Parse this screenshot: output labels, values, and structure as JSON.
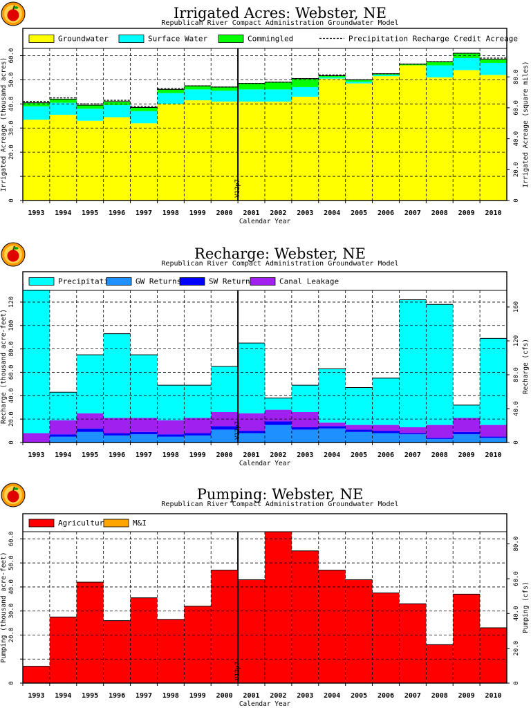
{
  "subtitle": "Republican River Compact Administration Groundwater Model",
  "years": [
    "1993",
    "1994",
    "1995",
    "1996",
    "1997",
    "1998",
    "1999",
    "2000",
    "2001",
    "2002",
    "2003",
    "2004",
    "2005",
    "2006",
    "2007",
    "2008",
    "2009",
    "2010"
  ],
  "marker": {
    "label": "V12p7",
    "after_year": "2000"
  },
  "chart_data": [
    {
      "type": "bar",
      "stacked": true,
      "title": "Irrigated Acres: Webster, NE",
      "xlabel": "Calendar Year",
      "ylabel": "Irrigated Acreage (thousand acres)",
      "ylabel_right": "Irrigated Acreage (square miles)",
      "ylim": [
        0,
        63
      ],
      "yticks": [
        0,
        10,
        20,
        30,
        40,
        50,
        60
      ],
      "ytick_labels": [
        "0",
        "",
        "20.0",
        "30.0",
        "40.0",
        "50.0",
        "60.0"
      ],
      "y2ticks": [
        0,
        20,
        40,
        60,
        80
      ],
      "y2ticks_text": [
        "0",
        "20.0",
        "40.0",
        "60.0",
        "80.0"
      ],
      "y2_scale": 0.64,
      "grid": true,
      "legend_position": "top",
      "series": [
        {
          "name": "Groundwater",
          "color": "#ffff00",
          "values": [
            33.5,
            35.5,
            33,
            34.5,
            32,
            40,
            41.5,
            41,
            41,
            41,
            43,
            50.5,
            48.5,
            51.5,
            56,
            51,
            54,
            52
          ]
        },
        {
          "name": "Surface Water",
          "color": "#00ffff",
          "values": [
            5.5,
            5,
            5,
            5,
            5,
            4.5,
            4.5,
            4.5,
            5,
            5,
            4,
            0.5,
            0.7,
            0.5,
            0,
            5,
            5,
            5
          ]
        },
        {
          "name": "Commingled",
          "color": "#00ff00",
          "values": [
            1.5,
            1.5,
            1.5,
            1.5,
            1.5,
            1.5,
            1.5,
            1.5,
            2.5,
            3,
            3.5,
            0.7,
            0.8,
            0.5,
            0.5,
            1.5,
            2,
            1.5
          ]
        }
      ],
      "lines": [
        {
          "name": "Precipitation Recharge Credit Acreage",
          "style": "dashed",
          "color": "#000000",
          "values": [
            41,
            42.5,
            40,
            41.5,
            39,
            46.5,
            47.5,
            47,
            48.5,
            49,
            50.5,
            52,
            50,
            52.5,
            56.5,
            57.5,
            61,
            59
          ]
        }
      ]
    },
    {
      "type": "bar",
      "stacked": true,
      "title": "Recharge: Webster, NE",
      "xlabel": "Calendar Year",
      "ylabel": "Recharge (thousand acre-feet)",
      "ylabel_right": "Recharge (cfs)",
      "ylim": [
        0,
        130
      ],
      "yticks": [
        0,
        20,
        40,
        60,
        80,
        100,
        120
      ],
      "ytick_labels": [
        "0",
        "20.0",
        "40.0",
        "60.0",
        "80.0",
        "100",
        "120"
      ],
      "y2ticks": [
        0,
        40,
        80,
        120,
        160
      ],
      "y2ticks_text": [
        "0",
        "40.0",
        "80.0",
        "120",
        "160"
      ],
      "y2_scale": 0.724,
      "grid": true,
      "legend_position": "top",
      "series": [
        {
          "name": "GW Returns",
          "color": "#1e90ff",
          "values": [
            0,
            5,
            9,
            6,
            7,
            5,
            6,
            11,
            8,
            15,
            11,
            12,
            9,
            8,
            7,
            3,
            7,
            4
          ]
        },
        {
          "name": "SW Returns",
          "color": "#0000ff",
          "values": [
            0,
            2,
            3,
            2,
            2,
            2,
            2,
            3,
            2,
            3,
            2,
            2,
            2,
            2,
            1,
            1,
            2,
            1
          ]
        },
        {
          "name": "Canal Leakage",
          "color": "#a020f0",
          "values": [
            8,
            12,
            13,
            13,
            12,
            12,
            13,
            12,
            15,
            10,
            13,
            3,
            4,
            5,
            5,
            11,
            12,
            10
          ]
        },
        {
          "name": "Precipitation",
          "color": "#00ffff",
          "values": [
            127,
            24,
            50,
            72,
            54,
            30,
            28,
            39,
            60,
            10,
            23,
            46,
            32,
            40,
            109,
            103,
            11,
            74
          ]
        }
      ]
    },
    {
      "type": "bar",
      "stacked": true,
      "title": "Pumping: Webster, NE",
      "xlabel": "Calendar Year",
      "ylabel": "Pumping (thousand acre-feet)",
      "ylabel_right": "Pumping (cfs)",
      "ylim": [
        0,
        63
      ],
      "yticks": [
        0,
        10,
        20,
        30,
        40,
        50,
        60
      ],
      "ytick_labels": [
        "0",
        "",
        "20.0",
        "30.0",
        "40.0",
        "50.0",
        "60.0"
      ],
      "y2ticks": [
        0,
        20,
        40,
        60,
        80
      ],
      "y2ticks_text": [
        "0",
        "20.0",
        "40.0",
        "60.0",
        "80.0"
      ],
      "y2_scale": 0.724,
      "grid": true,
      "legend_position": "top",
      "series": [
        {
          "name": "Agricultural",
          "color": "#ff0000",
          "values": [
            7,
            27.5,
            42,
            26,
            35.5,
            26.5,
            32,
            47,
            43,
            63,
            55,
            47,
            43,
            37.5,
            33,
            16,
            37,
            23
          ]
        },
        {
          "name": "M&I",
          "color": "#ffa500",
          "values": [
            0,
            0,
            0,
            0,
            0,
            0,
            0,
            0,
            0,
            0,
            0,
            0,
            0,
            0,
            0,
            0,
            0,
            0
          ]
        }
      ]
    }
  ]
}
